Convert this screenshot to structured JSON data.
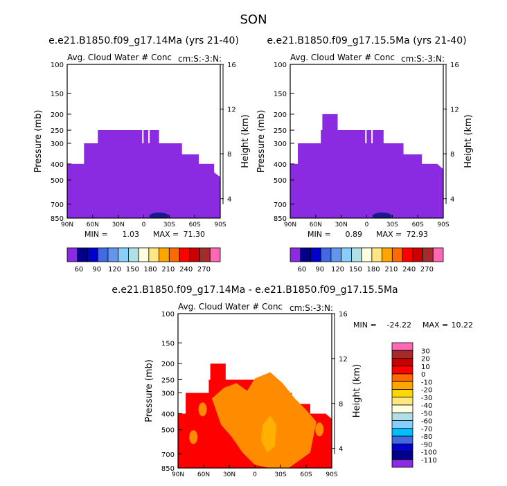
{
  "figure_title": "SON",
  "colors": {
    "cloud": "#8a2be2",
    "cloud_dark": "#1a1a8c",
    "diff_red": "#ff0000",
    "diff_orange": "#ff8c00",
    "diff_amber": "#ffb000"
  },
  "chart_data": [
    {
      "type": "heatmap",
      "title": "e.e21.B1850.f09_g17.14Ma (yrs 21-40)",
      "subtitle_left": "Avg. Cloud Water # Conc",
      "subtitle_right": "cm:S:-3:N:",
      "xlabel": "",
      "ylabel": "Pressure (mb)",
      "ylabel_right": "Height (km)",
      "x_ticks": [
        "90N",
        "60N",
        "30N",
        "0",
        "30S",
        "60S",
        "90S"
      ],
      "y_ticks": [
        "100",
        "150",
        "200",
        "250",
        "300",
        "400",
        "500",
        "700",
        "850"
      ],
      "y_right_ticks": [
        "16",
        "12",
        "8",
        "4"
      ],
      "min_label": "MIN =",
      "min_value": "1.03",
      "max_label": "MAX =",
      "max_value": "71.30",
      "colorbar_labels": [
        "60",
        "90",
        "120",
        "150",
        "180",
        "210",
        "240",
        "270"
      ],
      "colorbar_colors": [
        "#8a2be2",
        "#00008b",
        "#0000cd",
        "#4169e1",
        "#6495ed",
        "#87cefa",
        "#b0e0e6",
        "#ffffe0",
        "#ffe680",
        "#ffa500",
        "#ff6a00",
        "#ff0000",
        "#cc0000",
        "#a52a2a",
        "#ff69b4"
      ]
    },
    {
      "type": "heatmap",
      "title": "e.e21.B1850.f09_g17.15.5Ma (yrs 21-40)",
      "subtitle_left": "Avg. Cloud Water # Conc",
      "subtitle_right": "cm:S:-3:N:",
      "xlabel": "",
      "ylabel": "Pressure (mb)",
      "ylabel_right": "Height (km)",
      "x_ticks": [
        "90N",
        "60N",
        "30N",
        "0",
        "30S",
        "60S",
        "90S"
      ],
      "y_ticks": [
        "100",
        "150",
        "200",
        "250",
        "300",
        "400",
        "500",
        "700",
        "850"
      ],
      "y_right_ticks": [
        "16",
        "12",
        "8",
        "4"
      ],
      "min_label": "MIN =",
      "min_value": "0.89",
      "max_label": "MAX =",
      "max_value": "72.93",
      "colorbar_labels": [
        "60",
        "90",
        "120",
        "150",
        "180",
        "210",
        "240",
        "270"
      ],
      "colorbar_colors": [
        "#8a2be2",
        "#00008b",
        "#0000cd",
        "#4169e1",
        "#6495ed",
        "#87cefa",
        "#b0e0e6",
        "#ffffe0",
        "#ffe680",
        "#ffa500",
        "#ff6a00",
        "#ff0000",
        "#cc0000",
        "#a52a2a",
        "#ff69b4"
      ]
    },
    {
      "type": "heatmap",
      "title": "e.e21.B1850.f09_g17.14Ma - e.e21.B1850.f09_g17.15.5Ma",
      "subtitle_left": "Avg. Cloud Water # Conc",
      "subtitle_right": "cm:S:-3:N:",
      "xlabel": "",
      "ylabel": "Pressure (mb)",
      "ylabel_right": "Height (km)",
      "x_ticks": [
        "90N",
        "60N",
        "30N",
        "0",
        "30S",
        "60S",
        "90S"
      ],
      "y_ticks": [
        "100",
        "150",
        "200",
        "250",
        "300",
        "400",
        "500",
        "700",
        "850"
      ],
      "y_right_ticks": [
        "16",
        "12",
        "8",
        "4"
      ],
      "min_label": "MIN =",
      "min_value": "-24.22",
      "max_label": "MAX =",
      "max_value": "10.22",
      "colorbar_labels": [
        "30",
        "20",
        "10",
        "0",
        "-10",
        "-20",
        "-30",
        "-40",
        "-50",
        "-60",
        "-70",
        "-80",
        "-90",
        "-100",
        "-110"
      ],
      "colorbar_colors": [
        "#ff69b4",
        "#a52a2a",
        "#cc0000",
        "#ff0000",
        "#ff6a00",
        "#ffa500",
        "#ffd700",
        "#ffe680",
        "#ffffe0",
        "#b0e0e6",
        "#87cefa",
        "#00bfff",
        "#4169e1",
        "#0000cd",
        "#00008b",
        "#8a2be2"
      ]
    }
  ]
}
